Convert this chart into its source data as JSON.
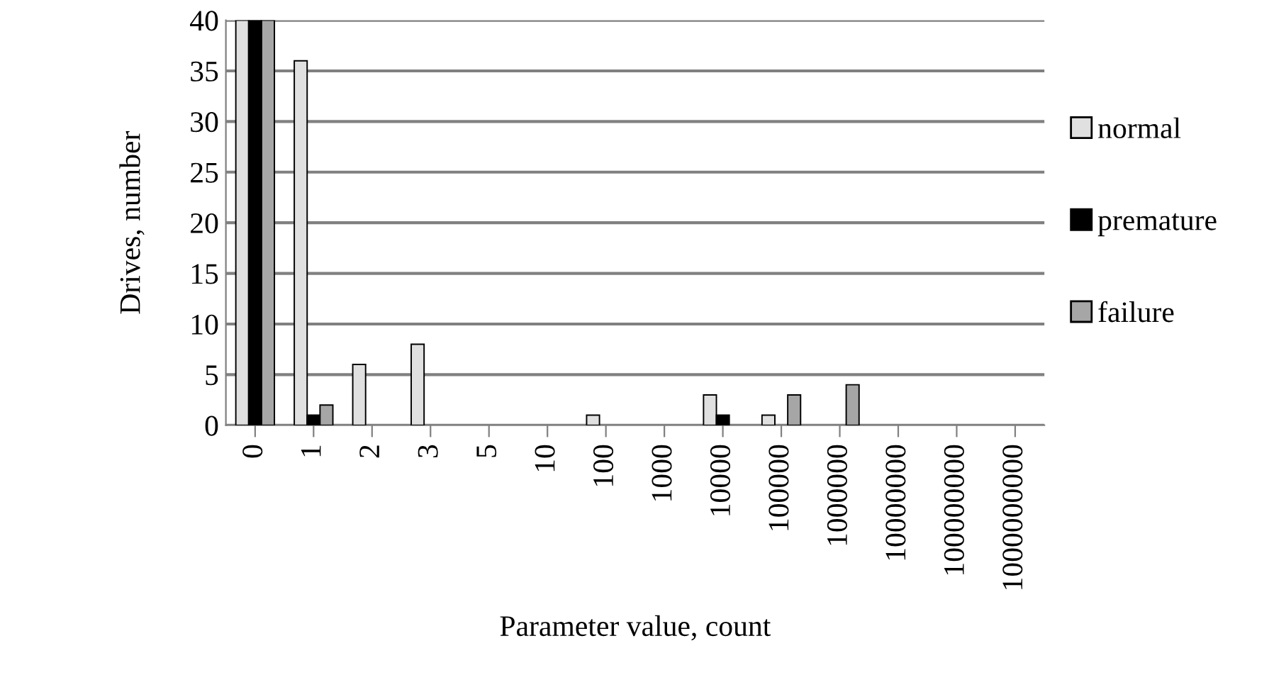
{
  "chart_data": {
    "type": "bar",
    "xlabel": "Parameter value, count",
    "ylabel": "Drives, number",
    "categories": [
      "0",
      "1",
      "2",
      "3",
      "5",
      "10",
      "100",
      "1000",
      "10000",
      "100000",
      "1000000",
      "10000000",
      "100000000",
      "1000000000"
    ],
    "series": [
      {
        "name": "normal",
        "color": "#e0e0e0",
        "values": [
          40,
          36,
          6,
          8,
          0,
          0,
          1,
          0,
          3,
          1,
          0,
          0,
          0,
          0
        ]
      },
      {
        "name": "premature",
        "color": "#000000",
        "values": [
          40,
          1,
          0,
          0,
          0,
          0,
          0,
          0,
          1,
          0,
          0,
          0,
          0,
          0
        ]
      },
      {
        "name": "failure",
        "color": "#a6a6a6",
        "values": [
          40,
          2,
          0,
          0,
          0,
          0,
          0,
          0,
          0,
          3,
          4,
          0,
          0,
          0
        ]
      }
    ],
    "ylim": [
      0,
      40
    ],
    "yticks": [
      0,
      5,
      10,
      15,
      20,
      25,
      30,
      35,
      40
    ],
    "grid": "y",
    "legend": "right"
  }
}
